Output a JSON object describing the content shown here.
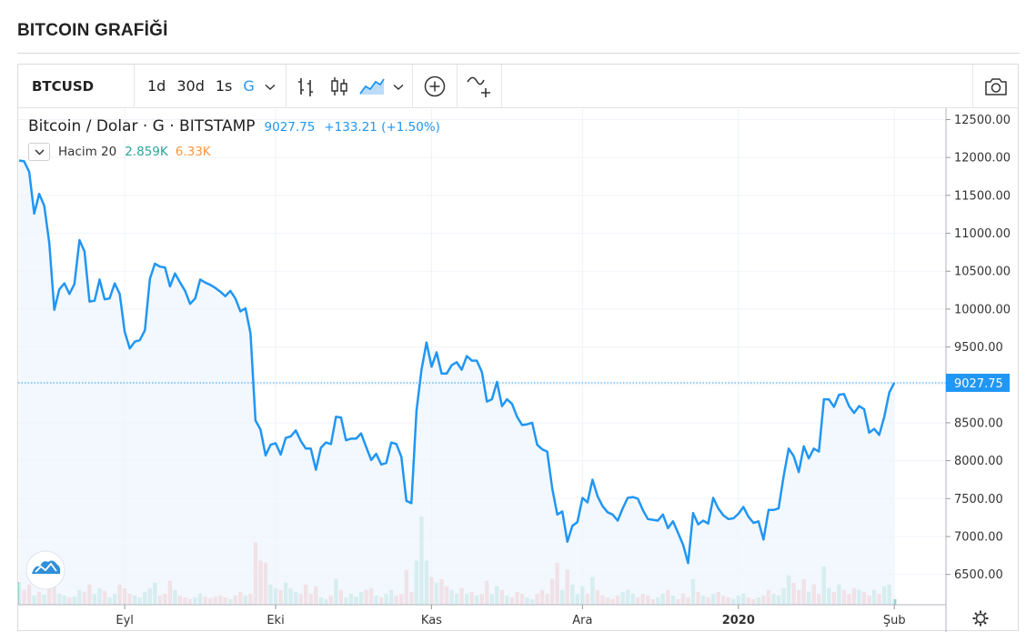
{
  "page": {
    "title": "BITCOIN GRAFİĞİ"
  },
  "toolbar": {
    "symbol": "BTCUSD",
    "intervals": [
      "1d",
      "30d",
      "1s",
      "G"
    ],
    "active_interval": "G",
    "icons": [
      "chevron-down-icon",
      "bar-chart-icon",
      "candles-icon",
      "area-chart-icon",
      "chevron-down-icon",
      "plus-circle-icon",
      "indicators-icon",
      "camera-icon"
    ]
  },
  "legend": {
    "symbol_text": "Bitcoin / Dolar · G · BITSTAMP",
    "last_price": "9027.75",
    "change": "+133.21 (+1.50%)",
    "volume_name": "Hacim 20",
    "volume_value_1": "2.859K",
    "volume_value_2": "6.33K"
  },
  "colors": {
    "line": "#2196f3",
    "area_fill": "#eef5fc",
    "volume_up": "#26a69a",
    "volume_down": "#ef5350",
    "last_price_tag": "#2196f3"
  },
  "chart_data": {
    "type": "area",
    "title": "Bitcoin / Dolar · G · BITSTAMP",
    "ylim": [
      6100,
      12650
    ],
    "y_ticks": [
      "12500.00",
      "12000.00",
      "11500.00",
      "11000.00",
      "10500.00",
      "10000.00",
      "9500.00",
      "9000.00",
      "8500.00",
      "8000.00",
      "7500.00",
      "7000.00",
      "6500.00"
    ],
    "y_tick_values": [
      12500,
      12000,
      11500,
      11000,
      10500,
      10000,
      9500,
      9000,
      8500,
      8000,
      7500,
      7000,
      6500
    ],
    "x_ticks": [
      {
        "label": "Eyl",
        "index": 21
      },
      {
        "label": "Eki",
        "index": 51
      },
      {
        "label": "Kas",
        "index": 82
      },
      {
        "label": "Ara",
        "index": 112
      },
      {
        "label": "2020",
        "index": 143
      },
      {
        "label": "Şub",
        "index": 174
      }
    ],
    "last_price": 9027.75,
    "grid": true,
    "series": [
      {
        "values": [
          11960,
          11950,
          11810,
          11260,
          11520,
          11360,
          10870,
          9990,
          10260,
          10340,
          10200,
          10330,
          10910,
          10760,
          10100,
          10110,
          10390,
          10130,
          10140,
          10340,
          10200,
          9700,
          9480,
          9570,
          9590,
          9720,
          10400,
          10600,
          10560,
          10550,
          10300,
          10470,
          10350,
          10240,
          10070,
          10140,
          10390,
          10350,
          10320,
          10280,
          10230,
          10170,
          10240,
          10140,
          9970,
          10010,
          9680,
          8530,
          8410,
          8070,
          8210,
          8230,
          8080,
          8300,
          8320,
          8400,
          8260,
          8160,
          8160,
          7880,
          8170,
          8240,
          8220,
          8580,
          8570,
          8270,
          8290,
          8290,
          8360,
          8180,
          8010,
          8090,
          7950,
          7970,
          8240,
          8220,
          8050,
          7470,
          7440,
          8660,
          9200,
          9560,
          9240,
          9430,
          9150,
          9150,
          9260,
          9300,
          9200,
          9380,
          9320,
          9320,
          9170,
          8780,
          8810,
          9040,
          8720,
          8810,
          8750,
          8580,
          8470,
          8480,
          8500,
          8210,
          8150,
          8120,
          7630,
          7290,
          7330,
          6930,
          7140,
          7190,
          7510,
          7450,
          7750,
          7530,
          7400,
          7320,
          7290,
          7210,
          7370,
          7510,
          7520,
          7500,
          7350,
          7230,
          7220,
          7210,
          7290,
          7110,
          7200,
          7050,
          6890,
          6650,
          7310,
          7160,
          7210,
          7170,
          7510,
          7370,
          7280,
          7230,
          7240,
          7300,
          7390,
          7260,
          7180,
          7200,
          6960,
          7350,
          7350,
          7370,
          7800,
          8160,
          8060,
          7850,
          8190,
          8030,
          8160,
          8120,
          8810,
          8810,
          8710,
          8870,
          8880,
          8720,
          8630,
          8720,
          8680,
          8370,
          8420,
          8340,
          8580,
          8900,
          9027.75
        ]
      }
    ],
    "volume": [
      {
        "value": 62,
        "dir": "up"
      },
      {
        "value": 40,
        "dir": "down"
      },
      {
        "value": 55,
        "dir": "down"
      },
      {
        "value": 25,
        "dir": "up"
      },
      {
        "value": 35,
        "dir": "down"
      },
      {
        "value": 28,
        "dir": "up"
      },
      {
        "value": 45,
        "dir": "down"
      },
      {
        "value": 60,
        "dir": "down"
      },
      {
        "value": 30,
        "dir": "up"
      },
      {
        "value": 25,
        "dir": "up"
      },
      {
        "value": 20,
        "dir": "down"
      },
      {
        "value": 22,
        "dir": "up"
      },
      {
        "value": 40,
        "dir": "up"
      },
      {
        "value": 35,
        "dir": "down"
      },
      {
        "value": 55,
        "dir": "down"
      },
      {
        "value": 30,
        "dir": "up"
      },
      {
        "value": 45,
        "dir": "up"
      },
      {
        "value": 38,
        "dir": "down"
      },
      {
        "value": 20,
        "dir": "up"
      },
      {
        "value": 30,
        "dir": "up"
      },
      {
        "value": 55,
        "dir": "down"
      },
      {
        "value": 45,
        "dir": "down"
      },
      {
        "value": 30,
        "dir": "down"
      },
      {
        "value": 25,
        "dir": "up"
      },
      {
        "value": 20,
        "dir": "up"
      },
      {
        "value": 35,
        "dir": "up"
      },
      {
        "value": 45,
        "dir": "up"
      },
      {
        "value": 60,
        "dir": "up"
      },
      {
        "value": 25,
        "dir": "down"
      },
      {
        "value": 30,
        "dir": "down"
      },
      {
        "value": 65,
        "dir": "down"
      },
      {
        "value": 40,
        "dir": "up"
      },
      {
        "value": 25,
        "dir": "down"
      },
      {
        "value": 20,
        "dir": "down"
      },
      {
        "value": 15,
        "dir": "down"
      },
      {
        "value": 20,
        "dir": "up"
      },
      {
        "value": 30,
        "dir": "up"
      },
      {
        "value": 22,
        "dir": "down"
      },
      {
        "value": 18,
        "dir": "down"
      },
      {
        "value": 22,
        "dir": "down"
      },
      {
        "value": 25,
        "dir": "down"
      },
      {
        "value": 20,
        "dir": "down"
      },
      {
        "value": 15,
        "dir": "up"
      },
      {
        "value": 25,
        "dir": "down"
      },
      {
        "value": 35,
        "dir": "down"
      },
      {
        "value": 25,
        "dir": "up"
      },
      {
        "value": 30,
        "dir": "down"
      },
      {
        "value": 170,
        "dir": "down"
      },
      {
        "value": 120,
        "dir": "down"
      },
      {
        "value": 115,
        "dir": "down"
      },
      {
        "value": 55,
        "dir": "up"
      },
      {
        "value": 45,
        "dir": "up"
      },
      {
        "value": 40,
        "dir": "down"
      },
      {
        "value": 60,
        "dir": "up"
      },
      {
        "value": 45,
        "dir": "up"
      },
      {
        "value": 35,
        "dir": "up"
      },
      {
        "value": 30,
        "dir": "down"
      },
      {
        "value": 55,
        "dir": "down"
      },
      {
        "value": 30,
        "dir": "down"
      },
      {
        "value": 50,
        "dir": "down"
      },
      {
        "value": 20,
        "dir": "up"
      },
      {
        "value": 15,
        "dir": "up"
      },
      {
        "value": 25,
        "dir": "down"
      },
      {
        "value": 70,
        "dir": "up"
      },
      {
        "value": 40,
        "dir": "down"
      },
      {
        "value": 20,
        "dir": "up"
      },
      {
        "value": 30,
        "dir": "up"
      },
      {
        "value": 22,
        "dir": "up"
      },
      {
        "value": 35,
        "dir": "up"
      },
      {
        "value": 40,
        "dir": "down"
      },
      {
        "value": 45,
        "dir": "down"
      },
      {
        "value": 25,
        "dir": "up"
      },
      {
        "value": 20,
        "dir": "down"
      },
      {
        "value": 30,
        "dir": "up"
      },
      {
        "value": 40,
        "dir": "up"
      },
      {
        "value": 25,
        "dir": "down"
      },
      {
        "value": 30,
        "dir": "down"
      },
      {
        "value": 95,
        "dir": "down"
      },
      {
        "value": 35,
        "dir": "down"
      },
      {
        "value": 120,
        "dir": "up"
      },
      {
        "value": 240,
        "dir": "up"
      },
      {
        "value": 120,
        "dir": "up"
      },
      {
        "value": 75,
        "dir": "down"
      },
      {
        "value": 60,
        "dir": "up"
      },
      {
        "value": 70,
        "dir": "down"
      },
      {
        "value": 50,
        "dir": "down"
      },
      {
        "value": 40,
        "dir": "up"
      },
      {
        "value": 30,
        "dir": "up"
      },
      {
        "value": 45,
        "dir": "down"
      },
      {
        "value": 30,
        "dir": "up"
      },
      {
        "value": 35,
        "dir": "down"
      },
      {
        "value": 25,
        "dir": "up"
      },
      {
        "value": 30,
        "dir": "down"
      },
      {
        "value": 65,
        "dir": "down"
      },
      {
        "value": 30,
        "dir": "up"
      },
      {
        "value": 50,
        "dir": "up"
      },
      {
        "value": 40,
        "dir": "down"
      },
      {
        "value": 25,
        "dir": "up"
      },
      {
        "value": 20,
        "dir": "down"
      },
      {
        "value": 35,
        "dir": "down"
      },
      {
        "value": 30,
        "dir": "down"
      },
      {
        "value": 20,
        "dir": "up"
      },
      {
        "value": 15,
        "dir": "up"
      },
      {
        "value": 30,
        "dir": "down"
      },
      {
        "value": 40,
        "dir": "down"
      },
      {
        "value": 30,
        "dir": "down"
      },
      {
        "value": 70,
        "dir": "down"
      },
      {
        "value": 115,
        "dir": "down"
      },
      {
        "value": 40,
        "dir": "up"
      },
      {
        "value": 95,
        "dir": "down"
      },
      {
        "value": 55,
        "dir": "up"
      },
      {
        "value": 30,
        "dir": "up"
      },
      {
        "value": 50,
        "dir": "up"
      },
      {
        "value": 30,
        "dir": "down"
      },
      {
        "value": 75,
        "dir": "up"
      },
      {
        "value": 40,
        "dir": "down"
      },
      {
        "value": 25,
        "dir": "down"
      },
      {
        "value": 20,
        "dir": "down"
      },
      {
        "value": 15,
        "dir": "down"
      },
      {
        "value": 25,
        "dir": "down"
      },
      {
        "value": 35,
        "dir": "up"
      },
      {
        "value": 40,
        "dir": "up"
      },
      {
        "value": 30,
        "dir": "up"
      },
      {
        "value": 20,
        "dir": "down"
      },
      {
        "value": 30,
        "dir": "down"
      },
      {
        "value": 25,
        "dir": "down"
      },
      {
        "value": 15,
        "dir": "down"
      },
      {
        "value": 20,
        "dir": "up"
      },
      {
        "value": 30,
        "dir": "up"
      },
      {
        "value": 40,
        "dir": "down"
      },
      {
        "value": 25,
        "dir": "up"
      },
      {
        "value": 15,
        "dir": "down"
      },
      {
        "value": 30,
        "dir": "down"
      },
      {
        "value": 20,
        "dir": "down"
      },
      {
        "value": 70,
        "dir": "up"
      },
      {
        "value": 35,
        "dir": "down"
      },
      {
        "value": 25,
        "dir": "up"
      },
      {
        "value": 20,
        "dir": "down"
      },
      {
        "value": 30,
        "dir": "up"
      },
      {
        "value": 35,
        "dir": "down"
      },
      {
        "value": 25,
        "dir": "down"
      },
      {
        "value": 20,
        "dir": "down"
      },
      {
        "value": 15,
        "dir": "up"
      },
      {
        "value": 25,
        "dir": "up"
      },
      {
        "value": 30,
        "dir": "up"
      },
      {
        "value": 20,
        "dir": "down"
      },
      {
        "value": 15,
        "dir": "down"
      },
      {
        "value": 20,
        "dir": "up"
      },
      {
        "value": 25,
        "dir": "down"
      },
      {
        "value": 40,
        "dir": "down"
      },
      {
        "value": 30,
        "dir": "up"
      },
      {
        "value": 25,
        "dir": "up"
      },
      {
        "value": 45,
        "dir": "up"
      },
      {
        "value": 80,
        "dir": "up"
      },
      {
        "value": 60,
        "dir": "down"
      },
      {
        "value": 40,
        "dir": "down"
      },
      {
        "value": 70,
        "dir": "down"
      },
      {
        "value": 35,
        "dir": "up"
      },
      {
        "value": 55,
        "dir": "down"
      },
      {
        "value": 30,
        "dir": "down"
      },
      {
        "value": 105,
        "dir": "up"
      },
      {
        "value": 45,
        "dir": "up"
      },
      {
        "value": 35,
        "dir": "down"
      },
      {
        "value": 55,
        "dir": "up"
      },
      {
        "value": 40,
        "dir": "down"
      },
      {
        "value": 30,
        "dir": "down"
      },
      {
        "value": 45,
        "dir": "down"
      },
      {
        "value": 40,
        "dir": "up"
      },
      {
        "value": 35,
        "dir": "down"
      },
      {
        "value": 25,
        "dir": "down"
      },
      {
        "value": 40,
        "dir": "up"
      },
      {
        "value": 30,
        "dir": "down"
      },
      {
        "value": 50,
        "dir": "up"
      },
      {
        "value": 55,
        "dir": "up"
      },
      {
        "value": 15,
        "dir": "up"
      }
    ]
  }
}
